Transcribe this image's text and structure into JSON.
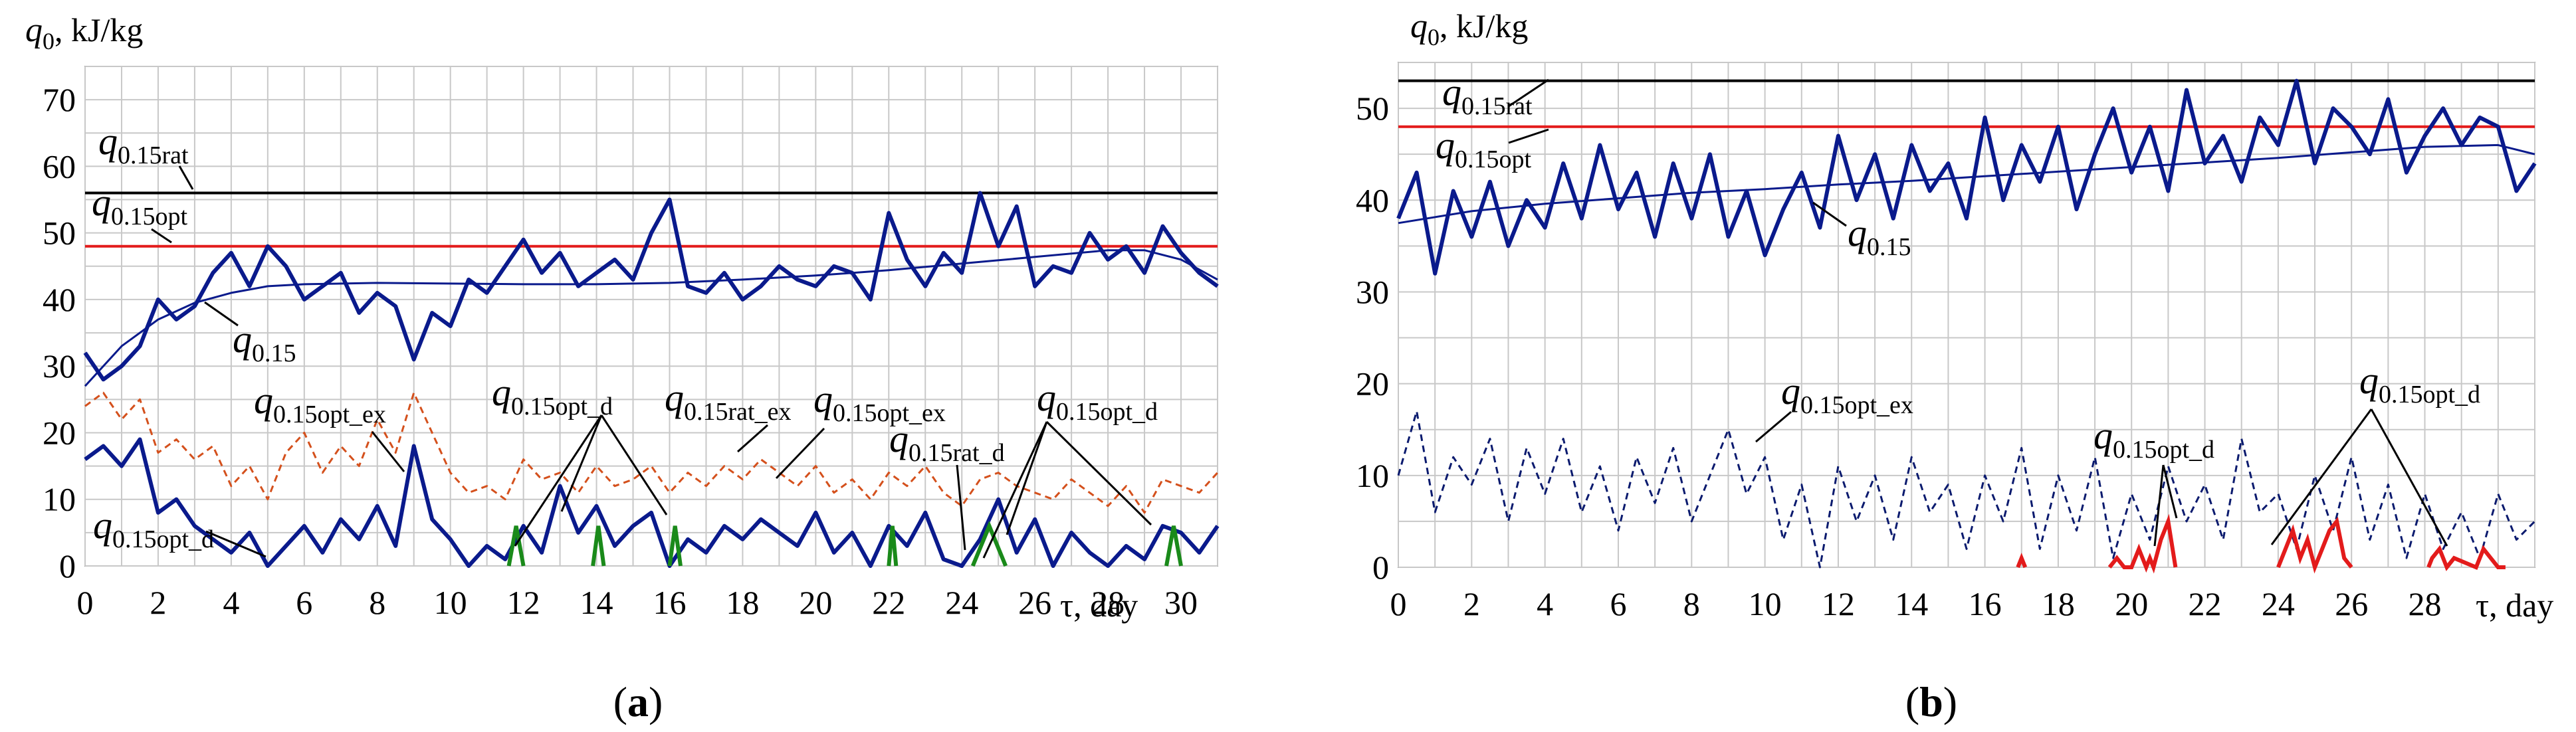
{
  "chart_data": [
    {
      "type": "line",
      "panel": "a",
      "panel_label_prefix": "(",
      "panel_label_letter": "a",
      "panel_label_suffix": ")",
      "ylabel_sym": "q",
      "ylabel_sub": "0",
      "ylabel_unit": ", kJ/kg",
      "xlabel": "τ, day",
      "xlim": [
        0,
        31
      ],
      "ylim": [
        0,
        75
      ],
      "xticks": [
        0,
        2,
        4,
        6,
        8,
        10,
        12,
        14,
        16,
        18,
        20,
        22,
        24,
        26,
        28,
        30
      ],
      "yticks": [
        0,
        10,
        20,
        30,
        40,
        50,
        60,
        70
      ],
      "grid": true,
      "colors": {
        "q015": "#0a1a8c",
        "rat": "#000000",
        "opt": "#e31b1b",
        "ex": "#d4501c",
        "opt_d": "#1a8a1a"
      },
      "lines": {
        "q015rat": 56,
        "q015opt": 48
      },
      "series": [
        {
          "name": "q0.15",
          "style": "solid",
          "x": [
            0,
            0.5,
            1,
            1.5,
            2,
            2.5,
            3,
            3.5,
            4,
            4.5,
            5,
            5.5,
            6,
            6.5,
            7,
            7.5,
            8,
            8.5,
            9,
            9.5,
            10,
            10.5,
            11,
            11.5,
            12,
            12.5,
            13,
            13.5,
            14,
            14.5,
            15,
            15.5,
            16,
            16.5,
            17,
            17.5,
            18,
            18.5,
            19,
            19.5,
            20,
            20.5,
            21,
            21.5,
            22,
            22.5,
            23,
            23.5,
            24,
            24.5,
            25,
            25.5,
            26,
            26.5,
            27,
            27.5,
            28,
            28.5,
            29,
            29.5,
            30,
            30.5,
            31
          ],
          "values": [
            32,
            28,
            30,
            33,
            40,
            37,
            39,
            44,
            47,
            42,
            48,
            45,
            40,
            42,
            44,
            38,
            41,
            39,
            31,
            38,
            36,
            43,
            41,
            45,
            49,
            44,
            47,
            42,
            44,
            46,
            43,
            50,
            55,
            42,
            41,
            44,
            40,
            42,
            45,
            43,
            42,
            45,
            44,
            40,
            53,
            46,
            42,
            47,
            44,
            56,
            48,
            54,
            42,
            45,
            44,
            50,
            46,
            48,
            44,
            51,
            47,
            44,
            42
          ]
        },
        {
          "name": "q0.15 trend",
          "style": "solid",
          "x": [
            0,
            1,
            2,
            3,
            4,
            5,
            6,
            8,
            10,
            12,
            14,
            16,
            18,
            20,
            22,
            24,
            26,
            28,
            29,
            30,
            31
          ],
          "values": [
            27,
            33,
            37,
            39.5,
            41,
            42,
            42.3,
            42.5,
            42.4,
            42.3,
            42.3,
            42.5,
            43,
            43.6,
            44.4,
            45.4,
            46.4,
            47.4,
            47.4,
            46,
            43
          ]
        },
        {
          "name": "q0.15opt_ex",
          "style": "dashed",
          "x": [
            0,
            0.5,
            1,
            1.5,
            2,
            2.5,
            3,
            3.5,
            4,
            4.5,
            5,
            5.5,
            6,
            6.5,
            7,
            7.5,
            8,
            8.5,
            9,
            9.5,
            10,
            10.5,
            11,
            11.5,
            12,
            12.5,
            13,
            13.5,
            14,
            14.5,
            15,
            15.5,
            16,
            16.5,
            17,
            17.5,
            18,
            18.5,
            19,
            19.5,
            20,
            20.5,
            21,
            21.5,
            22,
            22.5,
            23,
            23.5,
            24,
            24.5,
            25,
            25.5,
            26,
            26.5,
            27,
            27.5,
            28,
            28.5,
            29,
            29.5,
            30,
            30.5,
            31
          ],
          "values": [
            24,
            26,
            22,
            25,
            17,
            19,
            16,
            18,
            12,
            15,
            10,
            17,
            20,
            14,
            18,
            15,
            22,
            17,
            26,
            20,
            14,
            11,
            12,
            10,
            16,
            13,
            14,
            11,
            15,
            12,
            13,
            15,
            11,
            14,
            12,
            15,
            13,
            16,
            14,
            12,
            15,
            11,
            13,
            10,
            14,
            12,
            15,
            11,
            9,
            13,
            14,
            12,
            11,
            10,
            13,
            11,
            9,
            12,
            8,
            13,
            12,
            11,
            14
          ]
        },
        {
          "name": "q0.15opt_d",
          "style": "solid",
          "x": [
            0,
            0.5,
            1,
            1.5,
            2,
            2.5,
            3,
            3.5,
            4,
            4.5,
            5,
            5.5,
            6,
            6.5,
            7,
            7.5,
            8,
            8.5,
            9,
            9.5,
            10,
            10.5,
            11,
            11.5,
            12,
            12.5,
            13,
            13.5,
            14,
            14.5,
            15,
            15.5,
            16,
            16.5,
            17,
            17.5,
            18,
            18.5,
            19,
            19.5,
            20,
            20.5,
            21,
            21.5,
            22,
            22.5,
            23,
            23.5,
            24,
            24.5,
            25,
            25.5,
            26,
            26.5,
            27,
            27.5,
            28,
            28.5,
            29,
            29.5,
            30,
            30.5,
            31
          ],
          "values": [
            16,
            18,
            15,
            19,
            8,
            10,
            6,
            4,
            2,
            5,
            0,
            3,
            6,
            2,
            7,
            4,
            9,
            3,
            18,
            7,
            4,
            0,
            3,
            1,
            6,
            2,
            12,
            5,
            9,
            3,
            6,
            8,
            0,
            4,
            2,
            6,
            4,
            7,
            5,
            3,
            8,
            2,
            5,
            0,
            6,
            3,
            8,
            1,
            0,
            4,
            10,
            2,
            7,
            0,
            5,
            2,
            0,
            3,
            1,
            6,
            5,
            2,
            6
          ]
        }
      ],
      "annotations": [
        {
          "sym": "q",
          "sub": "0.15rat"
        },
        {
          "sym": "q",
          "sub": "0.15opt"
        },
        {
          "sym": "q",
          "sub": "0.15"
        },
        {
          "sym": "q",
          "sub": "0.15opt_ex"
        },
        {
          "sym": "q",
          "sub": "0.15opt_d"
        },
        {
          "sym": "q",
          "sub": "0.15opt_d"
        },
        {
          "sym": "q",
          "sub": "0.15rat_ex"
        },
        {
          "sym": "q",
          "sub": "0.15opt_ex"
        },
        {
          "sym": "q",
          "sub": "0.15rat_d"
        },
        {
          "sym": "q",
          "sub": "0.15opt_d"
        }
      ]
    },
    {
      "type": "line",
      "panel": "b",
      "panel_label_prefix": "(",
      "panel_label_letter": "b",
      "panel_label_suffix": ")",
      "ylabel_sym": "q",
      "ylabel_sub": "0",
      "ylabel_unit": ", kJ/kg",
      "xlabel": "τ, day",
      "xlim": [
        0,
        31
      ],
      "ylim": [
        0,
        55
      ],
      "xticks": [
        0,
        2,
        4,
        6,
        8,
        10,
        12,
        14,
        16,
        18,
        20,
        22,
        24,
        26,
        28
      ],
      "yticks": [
        0,
        10,
        20,
        30,
        40,
        50
      ],
      "grid": true,
      "colors": {
        "q015": "#0a1a8c",
        "rat": "#000000",
        "opt": "#e31b1b",
        "ex": "#0a1a6e",
        "opt_d": "#e31b1b"
      },
      "lines": {
        "q015rat": 53,
        "q015opt": 48
      },
      "series": [
        {
          "name": "q0.15",
          "style": "solid",
          "x": [
            0,
            0.5,
            1,
            1.5,
            2,
            2.5,
            3,
            3.5,
            4,
            4.5,
            5,
            5.5,
            6,
            6.5,
            7,
            7.5,
            8,
            8.5,
            9,
            9.5,
            10,
            10.5,
            11,
            11.5,
            12,
            12.5,
            13,
            13.5,
            14,
            14.5,
            15,
            15.5,
            16,
            16.5,
            17,
            17.5,
            18,
            18.5,
            19,
            19.5,
            20,
            20.5,
            21,
            21.5,
            22,
            22.5,
            23,
            23.5,
            24,
            24.5,
            25,
            25.5,
            26,
            26.5,
            27,
            27.5,
            28,
            28.5,
            29,
            29.5,
            30,
            30.5,
            31
          ],
          "values": [
            38,
            43,
            32,
            41,
            36,
            42,
            35,
            40,
            37,
            44,
            38,
            46,
            39,
            43,
            36,
            44,
            38,
            45,
            36,
            41,
            34,
            39,
            43,
            37,
            47,
            40,
            45,
            38,
            46,
            41,
            44,
            38,
            49,
            40,
            46,
            42,
            48,
            39,
            45,
            50,
            43,
            48,
            41,
            52,
            44,
            47,
            42,
            49,
            46,
            53,
            44,
            50,
            48,
            45,
            51,
            43,
            47,
            50,
            46,
            49,
            48,
            41,
            44
          ]
        },
        {
          "name": "q0.15 trend",
          "style": "solid",
          "x": [
            0,
            2,
            4,
            6,
            8,
            10,
            12,
            14,
            16,
            18,
            20,
            22,
            24,
            26,
            28,
            30,
            31
          ],
          "values": [
            37.5,
            38.8,
            39.6,
            40.2,
            40.8,
            41.2,
            41.7,
            42.1,
            42.6,
            43.1,
            43.6,
            44.1,
            44.6,
            45.2,
            45.8,
            46,
            45
          ]
        },
        {
          "name": "q0.15opt_ex",
          "style": "dashed",
          "x": [
            0,
            0.5,
            1,
            1.5,
            2,
            2.5,
            3,
            3.5,
            4,
            4.5,
            5,
            5.5,
            6,
            6.5,
            7,
            7.5,
            8,
            8.5,
            9,
            9.5,
            10,
            10.5,
            11,
            11.5,
            12,
            12.5,
            13,
            13.5,
            14,
            14.5,
            15,
            15.5,
            16,
            16.5,
            17,
            17.5,
            18,
            18.5,
            19,
            19.5,
            20,
            20.5,
            21,
            21.5,
            22,
            22.5,
            23,
            23.5,
            24,
            24.5,
            25,
            25.5,
            26,
            26.5,
            27,
            27.5,
            28,
            28.5,
            29,
            29.5,
            30,
            30.5,
            31
          ],
          "values": [
            10,
            17,
            6,
            12,
            9,
            14,
            5,
            13,
            8,
            14,
            6,
            11,
            4,
            12,
            7,
            13,
            5,
            10,
            15,
            8,
            12,
            3,
            9,
            0,
            11,
            5,
            10,
            3,
            12,
            6,
            9,
            2,
            10,
            5,
            13,
            2,
            10,
            4,
            12,
            1,
            8,
            3,
            11,
            5,
            9,
            3,
            14,
            6,
            8,
            2,
            10,
            4,
            12,
            3,
            9,
            1,
            8,
            2,
            6,
            1,
            8,
            3,
            5
          ]
        },
        {
          "name": "q0.15opt_d",
          "style": "solid",
          "x": [
            16.9,
            17,
            17.1,
            19.4,
            19.6,
            19.8,
            20,
            20.2,
            20.4,
            20.5,
            20.6,
            20.8,
            21,
            21.2,
            24,
            24.2,
            24.4,
            24.6,
            24.8,
            25,
            25.2,
            25.4,
            25.6,
            25.8,
            26,
            28.1,
            28.2,
            28.4,
            28.6,
            28.8,
            29.4,
            29.6,
            29.8,
            30,
            30.2
          ],
          "values": [
            0,
            1,
            0,
            0,
            1,
            0,
            0,
            2,
            0,
            1,
            0,
            3,
            5,
            0,
            0,
            2,
            4,
            1,
            3,
            0,
            2,
            4,
            5,
            1,
            0,
            0,
            1,
            2,
            0,
            1,
            0,
            2,
            1,
            0,
            0
          ]
        }
      ],
      "annotations": [
        {
          "sym": "q",
          "sub": "0.15rat"
        },
        {
          "sym": "q",
          "sub": "0.15opt"
        },
        {
          "sym": "q",
          "sub": "0.15"
        },
        {
          "sym": "q",
          "sub": "0.15opt_ex"
        },
        {
          "sym": "q",
          "sub": "0.15opt_d"
        },
        {
          "sym": "q",
          "sub": "0.15opt_d"
        }
      ]
    }
  ]
}
